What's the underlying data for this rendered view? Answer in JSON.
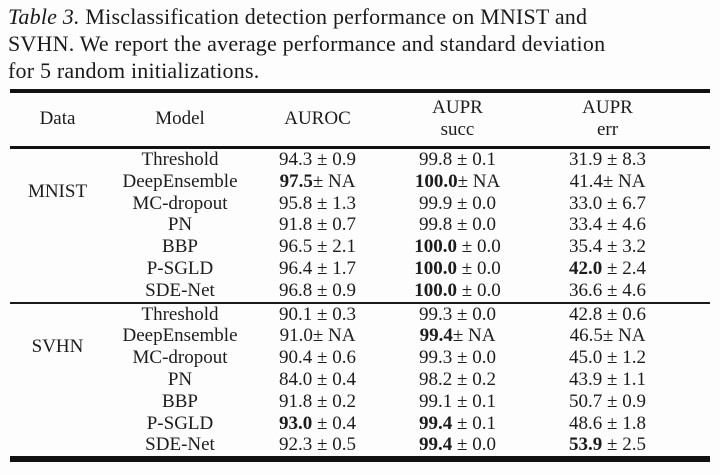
{
  "caption": {
    "line1_label": "Table 3.",
    "line1_rest": " Misclassification detection performance on MNIST and",
    "line2": "SVHN. We report the average performance and standard deviation",
    "line3": "for 5 random initializations."
  },
  "colors": {
    "text": "#1b1b1b",
    "rule": "#121212",
    "background": "#fdfdfd"
  },
  "table": {
    "headers": [
      {
        "label": "Data",
        "sublabel": ""
      },
      {
        "label": "Model",
        "sublabel": ""
      },
      {
        "label": "AUROC",
        "sublabel": ""
      },
      {
        "label": "AUPR",
        "sublabel": "succ"
      },
      {
        "label": "AUPR",
        "sublabel": "err"
      }
    ],
    "groups": [
      {
        "dataset": "MNIST",
        "rows": [
          {
            "model": "Threshold",
            "auroc": {
              "head": "94.3",
              "tail": " ± 0.9",
              "bold": false
            },
            "aupr_succ": {
              "head": "99.8",
              "tail": " ± 0.1",
              "bold": false
            },
            "aupr_err": {
              "head": "31.9",
              "tail": " ± 8.3",
              "bold": false
            }
          },
          {
            "model": "DeepEnsemble",
            "auroc": {
              "head": "97.5",
              "tail": "± NA",
              "bold": true
            },
            "aupr_succ": {
              "head": "100.0",
              "tail": "± NA",
              "bold": true
            },
            "aupr_err": {
              "head": "41.4",
              "tail": "± NA",
              "bold": false
            }
          },
          {
            "model": "MC-dropout",
            "auroc": {
              "head": "95.8",
              "tail": " ± 1.3",
              "bold": false
            },
            "aupr_succ": {
              "head": "99.9",
              "tail": " ± 0.0",
              "bold": false
            },
            "aupr_err": {
              "head": "33.0",
              "tail": " ± 6.7",
              "bold": false
            }
          },
          {
            "model": "PN",
            "auroc": {
              "head": "91.8",
              "tail": " ± 0.7",
              "bold": false
            },
            "aupr_succ": {
              "head": "99.8",
              "tail": " ± 0.0",
              "bold": false
            },
            "aupr_err": {
              "head": "33.4",
              "tail": " ± 4.6",
              "bold": false
            }
          },
          {
            "model": "BBP",
            "auroc": {
              "head": "96.5",
              "tail": " ± 2.1",
              "bold": false
            },
            "aupr_succ": {
              "head": "100.0",
              "tail": " ± 0.0",
              "bold": true
            },
            "aupr_err": {
              "head": "35.4",
              "tail": " ± 3.2",
              "bold": false
            }
          },
          {
            "model": "P-SGLD",
            "auroc": {
              "head": "96.4",
              "tail": " ± 1.7",
              "bold": false
            },
            "aupr_succ": {
              "head": "100.0",
              "tail": " ± 0.0",
              "bold": true
            },
            "aupr_err": {
              "head": "42.0",
              "tail": " ± 2.4",
              "bold": true
            }
          },
          {
            "model": "SDE-Net",
            "auroc": {
              "head": "96.8",
              "tail": " ± 0.9",
              "bold": false
            },
            "aupr_succ": {
              "head": "100.0",
              "tail": " ± 0.0",
              "bold": true
            },
            "aupr_err": {
              "head": "36.6",
              "tail": " ± 4.6",
              "bold": false
            }
          }
        ]
      },
      {
        "dataset": "SVHN",
        "rows": [
          {
            "model": "Threshold",
            "auroc": {
              "head": "90.1",
              "tail": " ± 0.3",
              "bold": false
            },
            "aupr_succ": {
              "head": "99.3",
              "tail": " ± 0.0",
              "bold": false
            },
            "aupr_err": {
              "head": "42.8",
              "tail": " ± 0.6",
              "bold": false
            }
          },
          {
            "model": "DeepEnsemble",
            "auroc": {
              "head": "91.0",
              "tail": "± NA",
              "bold": false
            },
            "aupr_succ": {
              "head": "99.4",
              "tail": "± NA",
              "bold": true
            },
            "aupr_err": {
              "head": "46.5",
              "tail": "± NA",
              "bold": false
            }
          },
          {
            "model": "MC-dropout",
            "auroc": {
              "head": "90.4",
              "tail": " ± 0.6",
              "bold": false
            },
            "aupr_succ": {
              "head": "99.3",
              "tail": " ± 0.0",
              "bold": false
            },
            "aupr_err": {
              "head": "45.0",
              "tail": " ± 1.2",
              "bold": false
            }
          },
          {
            "model": "PN",
            "auroc": {
              "head": "84.0",
              "tail": " ± 0.4",
              "bold": false
            },
            "aupr_succ": {
              "head": "98.2",
              "tail": " ± 0.2",
              "bold": false
            },
            "aupr_err": {
              "head": "43.9",
              "tail": " ± 1.1",
              "bold": false
            }
          },
          {
            "model": "BBP",
            "auroc": {
              "head": "91.8",
              "tail": " ± 0.2",
              "bold": false
            },
            "aupr_succ": {
              "head": "99.1",
              "tail": " ± 0.1",
              "bold": false
            },
            "aupr_err": {
              "head": "50.7",
              "tail": " ± 0.9",
              "bold": false
            }
          },
          {
            "model": "P-SGLD",
            "auroc": {
              "head": "93.0",
              "tail": " ± 0.4",
              "bold": true
            },
            "aupr_succ": {
              "head": "99.4",
              "tail": " ± 0.1",
              "bold": true
            },
            "aupr_err": {
              "head": "48.6",
              "tail": " ± 1.8",
              "bold": false
            }
          },
          {
            "model": "SDE-Net",
            "auroc": {
              "head": "92.3",
              "tail": " ± 0.5",
              "bold": false
            },
            "aupr_succ": {
              "head": "99.4",
              "tail": " ± 0.0",
              "bold": true
            },
            "aupr_err": {
              "head": "53.9",
              "tail": " ± 2.5",
              "bold": true
            }
          }
        ]
      }
    ]
  }
}
